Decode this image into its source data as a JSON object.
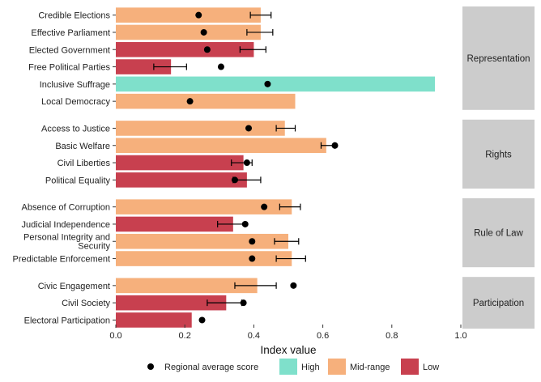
{
  "chart_data": {
    "type": "bar",
    "orientation": "horizontal",
    "xlabel": "Index value",
    "xlim": [
      0,
      1.0
    ],
    "x_ticks": [
      "0.0",
      "0.2",
      "0.4",
      "0.6",
      "0.8",
      "1.0"
    ],
    "grid": false,
    "legend_position": "bottom",
    "colors": {
      "High": "#7fe0cb",
      "Mid-range": "#f6b07c",
      "Low": "#c8404f",
      "point": "#000000",
      "strip": "#cccccc"
    },
    "legend": {
      "point_label": "Regional average score",
      "items": [
        "High",
        "Mid-range",
        "Low"
      ]
    },
    "panels": [
      {
        "label": "Representation",
        "rows": [
          {
            "label": "Credible Elections",
            "value": 0.42,
            "category": "Mid-range",
            "avg": 0.24,
            "err": [
              0.39,
              0.45
            ]
          },
          {
            "label": "Effective Parliament",
            "value": 0.42,
            "category": "Mid-range",
            "avg": 0.255,
            "err": [
              0.38,
              0.455
            ]
          },
          {
            "label": "Elected Government",
            "value": 0.4,
            "category": "Low",
            "avg": 0.265,
            "err": [
              0.36,
              0.435
            ]
          },
          {
            "label": "Free Political Parties",
            "value": 0.16,
            "category": "Low",
            "avg": 0.305,
            "err": [
              0.11,
              0.205
            ]
          },
          {
            "label": "Inclusive Suffrage",
            "value": 0.925,
            "category": "High",
            "avg": 0.44,
            "err": null
          },
          {
            "label": "Local Democracy",
            "value": 0.52,
            "category": "Mid-range",
            "avg": 0.215,
            "err": null
          }
        ]
      },
      {
        "label": "Rights",
        "rows": [
          {
            "label": "Access to Justice",
            "value": 0.49,
            "category": "Mid-range",
            "avg": 0.385,
            "err": [
              0.465,
              0.52
            ]
          },
          {
            "label": "Basic Welfare",
            "value": 0.61,
            "category": "Mid-range",
            "avg": 0.635,
            "err": [
              0.595,
              0.635
            ]
          },
          {
            "label": "Civil Liberties",
            "value": 0.37,
            "category": "Low",
            "avg": 0.38,
            "err": [
              0.335,
              0.395
            ]
          },
          {
            "label": "Political Equality",
            "value": 0.38,
            "category": "Low",
            "avg": 0.345,
            "err": [
              0.34,
              0.42
            ]
          }
        ]
      },
      {
        "label": "Rule of Law",
        "rows": [
          {
            "label": "Absence of Corruption",
            "value": 0.51,
            "category": "Mid-range",
            "avg": 0.43,
            "err": [
              0.475,
              0.535
            ]
          },
          {
            "label": "Judicial Independence",
            "value": 0.34,
            "category": "Low",
            "avg": 0.375,
            "err": [
              0.295,
              0.375
            ]
          },
          {
            "label": "Personal Integrity and\nSecurity",
            "value": 0.5,
            "category": "Mid-range",
            "avg": 0.395,
            "err": [
              0.46,
              0.53
            ]
          },
          {
            "label": "Predictable Enforcement",
            "value": 0.51,
            "category": "Mid-range",
            "avg": 0.395,
            "err": [
              0.465,
              0.55
            ]
          }
        ]
      },
      {
        "label": "Participation",
        "rows": [
          {
            "label": "Civic Engagement",
            "value": 0.41,
            "category": "Mid-range",
            "avg": 0.515,
            "err": [
              0.345,
              0.465
            ]
          },
          {
            "label": "Civil Society",
            "value": 0.32,
            "category": "Low",
            "avg": 0.37,
            "err": [
              0.265,
              0.365
            ]
          },
          {
            "label": "Electoral Participation",
            "value": 0.22,
            "category": "Low",
            "avg": 0.25,
            "err": null
          }
        ]
      }
    ]
  }
}
